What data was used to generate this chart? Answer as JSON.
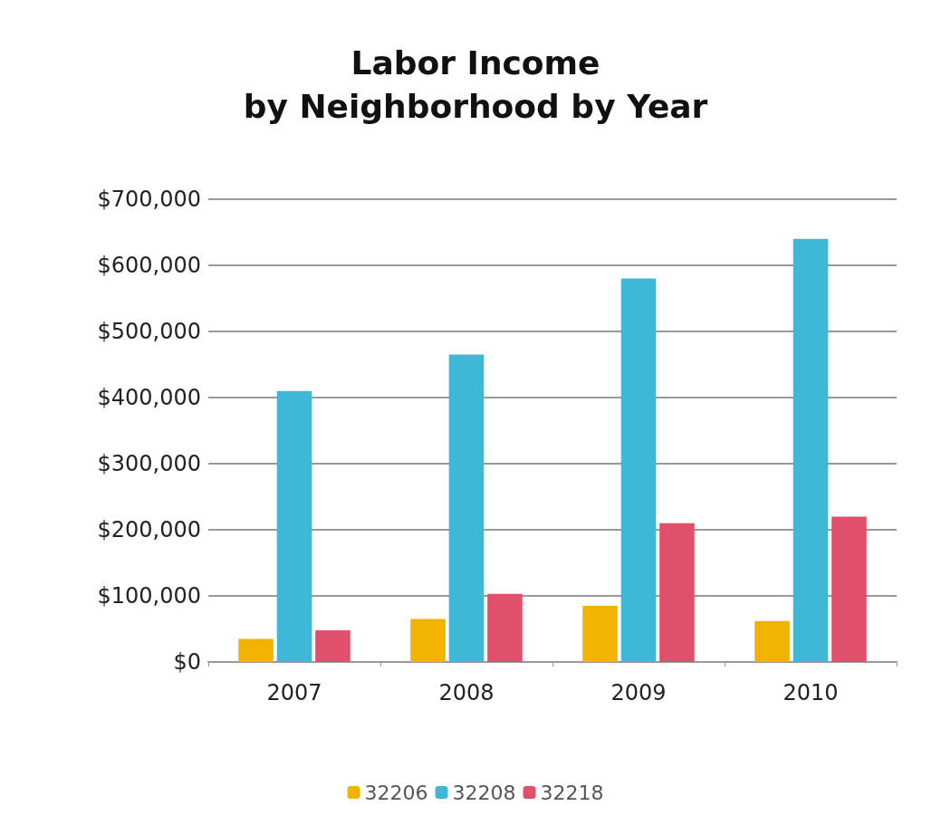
{
  "chart_data": {
    "type": "bar",
    "title": "Labor Income\nby Neighborhood by Year",
    "categories": [
      "2007",
      "2008",
      "2009",
      "2010"
    ],
    "series": [
      {
        "name": "32206",
        "color": "#f2b200",
        "values": [
          35000,
          65000,
          85000,
          62000
        ]
      },
      {
        "name": "32208",
        "color": "#3fb8d8",
        "values": [
          410000,
          465000,
          580000,
          640000
        ]
      },
      {
        "name": "32218",
        "color": "#e0506a",
        "values": [
          48000,
          103000,
          210000,
          220000
        ]
      }
    ],
    "ylim": [
      0,
      700000
    ],
    "yticks": [
      {
        "value": 0,
        "label": "$0"
      },
      {
        "value": 100000,
        "label": "$100,000"
      },
      {
        "value": 200000,
        "label": "$200,000"
      },
      {
        "value": 300000,
        "label": "$300,000"
      },
      {
        "value": 400000,
        "label": "$400,000"
      },
      {
        "value": 500000,
        "label": "$500,000"
      },
      {
        "value": 600000,
        "label": "$600,000"
      },
      {
        "value": 700000,
        "label": "$700,000"
      }
    ],
    "grid": "y",
    "legend": "bottom"
  }
}
